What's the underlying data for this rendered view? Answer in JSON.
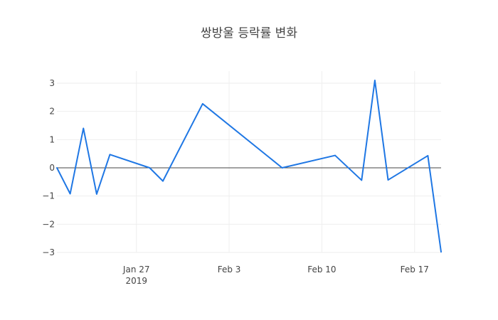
{
  "chart_data": {
    "type": "line",
    "title": "쌍방울 등락률 변화",
    "xlabel": "",
    "ylabel": "",
    "x": [
      "2019-01-21",
      "2019-01-22",
      "2019-01-23",
      "2019-01-24",
      "2019-01-25",
      "2019-01-28",
      "2019-01-29",
      "2019-02-01",
      "2019-02-07",
      "2019-02-11",
      "2019-02-13",
      "2019-02-14",
      "2019-02-15",
      "2019-02-18",
      "2019-02-19"
    ],
    "series": [
      {
        "values": [
          0.0,
          -0.92,
          1.4,
          -0.93,
          0.47,
          0.0,
          -0.47,
          2.27,
          0.0,
          0.44,
          -0.44,
          3.1,
          -0.43,
          0.43,
          -2.98
        ],
        "color": "#1f77e4"
      }
    ],
    "ylim": [
      -3.25,
      3.45
    ],
    "yticks": [
      3,
      2,
      1,
      0,
      -1,
      -2,
      -3
    ],
    "ytick_labels": [
      "3",
      "2",
      "1",
      "0",
      "−1",
      "−2",
      "−3"
    ],
    "xticks": [
      {
        "date": "2019-01-27",
        "label": "Jan 27",
        "sublabel": "2019"
      },
      {
        "date": "2019-02-03",
        "label": "Feb 3",
        "sublabel": ""
      },
      {
        "date": "2019-02-10",
        "label": "Feb 10",
        "sublabel": ""
      },
      {
        "date": "2019-02-17",
        "label": "Feb 17",
        "sublabel": ""
      }
    ],
    "grid": true,
    "zero_line": true,
    "colors": {
      "grid": "#eeeeee",
      "zero_line": "#444444",
      "tick_text": "#444444"
    }
  }
}
